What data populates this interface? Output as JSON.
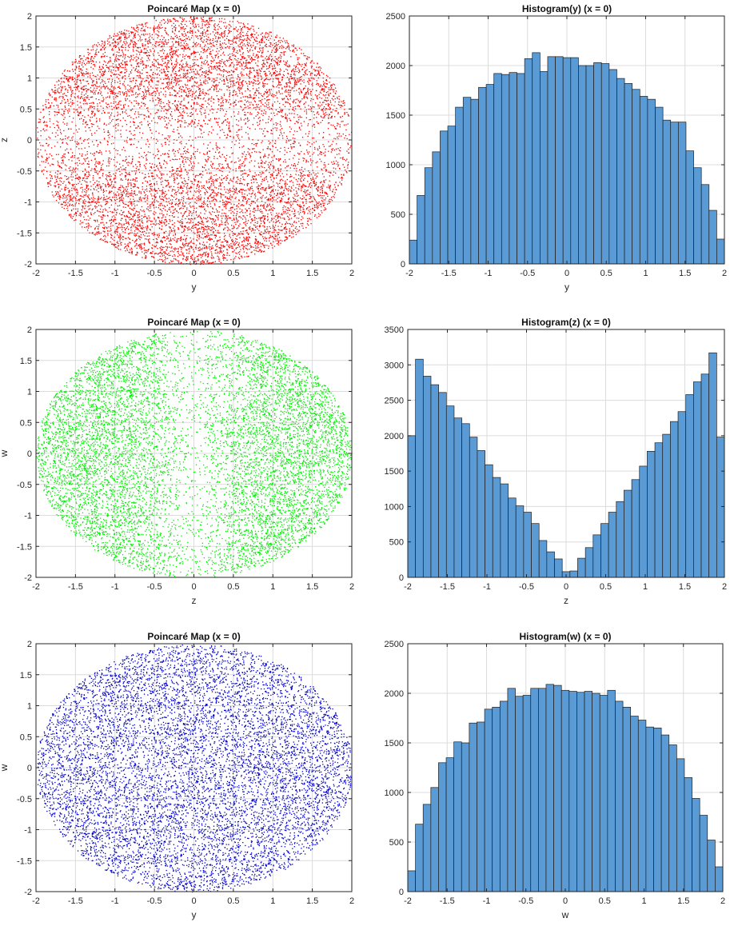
{
  "chart_data": [
    {
      "type": "scatter",
      "title": "Poincaré Map (x = 0)",
      "xlabel": "y",
      "ylabel": "z",
      "xlim": [
        -2,
        2
      ],
      "ylim": [
        -2,
        2
      ],
      "xticks": [
        -2,
        -1.5,
        -1,
        -0.5,
        0,
        0.5,
        1,
        1.5,
        2
      ],
      "yticks": [
        -2,
        -1.5,
        -1,
        -0.5,
        0,
        0.5,
        1,
        1.5,
        2
      ],
      "xtick_labels": [
        "-2",
        "-1.5",
        "-1",
        "-0.5",
        "0",
        "0.5",
        "1",
        "1.5",
        "2"
      ],
      "ytick_labels": [
        "-2",
        "-1.5",
        "-1",
        "-0.5",
        "0",
        "0.5",
        "1",
        "1.5",
        "2"
      ],
      "grid": true,
      "color": "#ff0000",
      "distribution": "disk of radius 2, density sparse near z = 0"
    },
    {
      "type": "bar",
      "title": "Histogram(y) (x = 0)",
      "xlabel": "y",
      "ylabel": "",
      "xlim": [
        -2,
        2
      ],
      "ylim": [
        0,
        2500
      ],
      "xticks": [
        -2,
        -1.5,
        -1,
        -0.5,
        0,
        0.5,
        1,
        1.5,
        2
      ],
      "yticks": [
        0,
        500,
        1000,
        1500,
        2000,
        2500
      ],
      "xtick_labels": [
        "-2",
        "-1.5",
        "-1",
        "-0.5",
        "0",
        "0.5",
        "1",
        "1.5",
        "2"
      ],
      "ytick_labels": [
        "0",
        "500",
        "1000",
        "1500",
        "2000",
        "2500"
      ],
      "grid": true,
      "color": "#5b9bd5",
      "bin_edges": [
        -2,
        2
      ],
      "values": [
        240,
        690,
        970,
        1130,
        1340,
        1390,
        1580,
        1680,
        1660,
        1780,
        1810,
        1920,
        1910,
        1930,
        1920,
        2070,
        2130,
        1940,
        2090,
        2090,
        2080,
        2080,
        2000,
        2000,
        2030,
        2020,
        1960,
        1870,
        1820,
        1760,
        1690,
        1660,
        1580,
        1450,
        1430,
        1430,
        1140,
        970,
        800,
        540,
        250
      ]
    },
    {
      "type": "scatter",
      "title": "Poincaré Map (x = 0)",
      "xlabel": "z",
      "ylabel": "w",
      "xlim": [
        -2,
        2
      ],
      "ylim": [
        -2,
        2
      ],
      "xticks": [
        -2,
        -1.5,
        -1,
        -0.5,
        0,
        0.5,
        1,
        1.5,
        2
      ],
      "yticks": [
        -2,
        -1.5,
        -1,
        -0.5,
        0,
        0.5,
        1,
        1.5,
        2
      ],
      "xtick_labels": [
        "-2",
        "-1.5",
        "-1",
        "-0.5",
        "0",
        "0.5",
        "1",
        "1.5",
        "2"
      ],
      "ytick_labels": [
        "-2",
        "-1.5",
        "-1",
        "-0.5",
        "0",
        "0.5",
        "1",
        "1.5",
        "2"
      ],
      "grid": true,
      "color": "#00ee00",
      "distribution": "disk of radius 2, density sparse near z = 0"
    },
    {
      "type": "bar",
      "title": "Histogram(z) (x = 0)",
      "xlabel": "z",
      "ylabel": "",
      "xlim": [
        -2,
        2
      ],
      "ylim": [
        0,
        3500
      ],
      "xticks": [
        -2,
        -1.5,
        -1,
        -0.5,
        0,
        0.5,
        1,
        1.5,
        2
      ],
      "yticks": [
        0,
        500,
        1000,
        1500,
        2000,
        2500,
        3000,
        3500
      ],
      "xtick_labels": [
        "-2",
        "-1.5",
        "-1",
        "-0.5",
        "0",
        "0.5",
        "1",
        "1.5",
        "2"
      ],
      "ytick_labels": [
        "0",
        "500",
        "1000",
        "1500",
        "2000",
        "2500",
        "3000",
        "3500"
      ],
      "grid": true,
      "color": "#5b9bd5",
      "bin_edges": [
        -2,
        2
      ],
      "values": [
        2000,
        3080,
        2840,
        2720,
        2610,
        2420,
        2250,
        2170,
        1980,
        1790,
        1590,
        1410,
        1320,
        1120,
        1010,
        920,
        760,
        520,
        360,
        260,
        80,
        90,
        270,
        420,
        600,
        760,
        920,
        1070,
        1230,
        1380,
        1570,
        1780,
        1900,
        2020,
        2200,
        2340,
        2580,
        2760,
        2870,
        3170,
        1980
      ]
    },
    {
      "type": "scatter",
      "title": "Poincaré Map (x = 0)",
      "xlabel": "y",
      "ylabel": "w",
      "xlim": [
        -2,
        2
      ],
      "ylim": [
        -2,
        2
      ],
      "xticks": [
        -2,
        -1.5,
        -1,
        -0.5,
        0,
        0.5,
        1,
        1.5,
        2
      ],
      "yticks": [
        -2,
        -1.5,
        -1,
        -0.5,
        0,
        0.5,
        1,
        1.5,
        2
      ],
      "xtick_labels": [
        "-2",
        "-1.5",
        "-1",
        "-0.5",
        "0",
        "0.5",
        "1",
        "1.5",
        "2"
      ],
      "ytick_labels": [
        "-2",
        "-1.5",
        "-1",
        "-0.5",
        "0",
        "0.5",
        "1",
        "1.5",
        "2"
      ],
      "grid": true,
      "color": "#0000cc",
      "distribution": "disk of radius 2, approximately uniform"
    },
    {
      "type": "bar",
      "title": "Histogram(w) (x = 0)",
      "xlabel": "w",
      "ylabel": "",
      "xlim": [
        -2,
        2
      ],
      "ylim": [
        0,
        2500
      ],
      "xticks": [
        -2,
        -1.5,
        -1,
        -0.5,
        0,
        0.5,
        1,
        1.5,
        2
      ],
      "yticks": [
        0,
        500,
        1000,
        1500,
        2000,
        2500
      ],
      "xtick_labels": [
        "-2",
        "-1.5",
        "-1",
        "-0.5",
        "0",
        "0.5",
        "1",
        "1.5",
        "2"
      ],
      "ytick_labels": [
        "0",
        "500",
        "1000",
        "1500",
        "2000",
        "2500"
      ],
      "grid": true,
      "color": "#5b9bd5",
      "bin_edges": [
        -2,
        2
      ],
      "values": [
        210,
        680,
        880,
        1050,
        1300,
        1350,
        1510,
        1500,
        1700,
        1710,
        1840,
        1860,
        1920,
        2050,
        1970,
        1980,
        2050,
        2050,
        2090,
        2080,
        2030,
        2020,
        2010,
        2020,
        2000,
        1980,
        2030,
        1920,
        1860,
        1770,
        1730,
        1660,
        1650,
        1580,
        1480,
        1340,
        1150,
        940,
        770,
        520,
        250
      ]
    }
  ]
}
